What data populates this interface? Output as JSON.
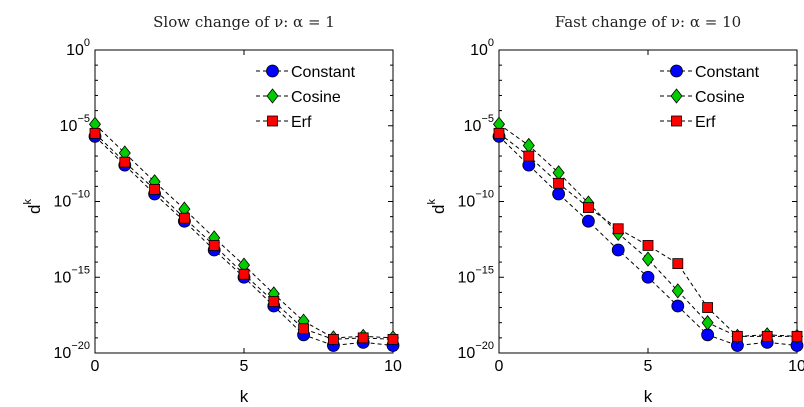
{
  "chart_data": [
    {
      "type": "line",
      "title": "Slow change of ν: α = 1",
      "xlabel": "k",
      "ylabel": "d",
      "ylabel_sup": "k",
      "yscale": "log",
      "xlim": [
        0,
        10
      ],
      "ylim_exp": [
        -20,
        0
      ],
      "xticks": [
        "0",
        "5",
        "10"
      ],
      "yticks": [
        {
          "base": "10",
          "exp": "0",
          "value": 0
        },
        {
          "base": "10",
          "exp": "−5",
          "value": -5
        },
        {
          "base": "10",
          "exp": "−10",
          "value": -10
        },
        {
          "base": "10",
          "exp": "−15",
          "value": -15
        },
        {
          "base": "10",
          "exp": "−20",
          "value": -20
        }
      ],
      "legend_position": "top-right",
      "x": [
        0,
        1,
        2,
        3,
        4,
        5,
        6,
        7,
        8,
        9,
        10
      ],
      "series": [
        {
          "name": "Constant",
          "marker": "circle",
          "color": "#0000ff",
          "log10_values": [
            -5.7,
            -7.6,
            -9.5,
            -11.3,
            -13.2,
            -15.0,
            -16.9,
            -18.8,
            -19.5,
            -19.3,
            -19.5
          ]
        },
        {
          "name": "Cosine",
          "marker": "diamond",
          "color": "#00cc00",
          "log10_values": [
            -4.9,
            -6.8,
            -8.7,
            -10.5,
            -12.4,
            -14.2,
            -16.1,
            -17.9,
            -19.0,
            -18.9,
            -19.0
          ]
        },
        {
          "name": "Erf",
          "marker": "square",
          "color": "#ff0000",
          "log10_values": [
            -5.5,
            -7.4,
            -9.2,
            -11.1,
            -12.9,
            -14.8,
            -16.6,
            -18.4,
            -19.1,
            -19.0,
            -19.1
          ]
        }
      ]
    },
    {
      "type": "line",
      "title": "Fast change of ν: α = 10",
      "xlabel": "k",
      "ylabel": "d",
      "ylabel_sup": "k",
      "yscale": "log",
      "xlim": [
        0,
        10
      ],
      "ylim_exp": [
        -20,
        0
      ],
      "xticks": [
        "0",
        "5",
        "10"
      ],
      "yticks": [
        {
          "base": "10",
          "exp": "0",
          "value": 0
        },
        {
          "base": "10",
          "exp": "−5",
          "value": -5
        },
        {
          "base": "10",
          "exp": "−10",
          "value": -10
        },
        {
          "base": "10",
          "exp": "−15",
          "value": -15
        },
        {
          "base": "10",
          "exp": "−20",
          "value": -20
        }
      ],
      "legend_position": "top-right",
      "x": [
        0,
        1,
        2,
        3,
        4,
        5,
        6,
        7,
        8,
        9,
        10
      ],
      "series": [
        {
          "name": "Constant",
          "marker": "circle",
          "color": "#0000ff",
          "log10_values": [
            -5.7,
            -7.6,
            -9.5,
            -11.3,
            -13.2,
            -15.0,
            -16.9,
            -18.8,
            -19.5,
            -19.3,
            -19.5
          ]
        },
        {
          "name": "Cosine",
          "marker": "diamond",
          "color": "#00cc00",
          "log10_values": [
            -4.9,
            -6.3,
            -8.1,
            -10.1,
            -12.1,
            -13.8,
            -15.9,
            -18.0,
            -18.9,
            -18.8,
            -18.9
          ]
        },
        {
          "name": "Erf",
          "marker": "square",
          "color": "#ff0000",
          "log10_values": [
            -5.5,
            -7.0,
            -8.8,
            -10.4,
            -11.8,
            -12.9,
            -14.1,
            -17.0,
            -18.9,
            -18.9,
            -18.9
          ]
        }
      ]
    }
  ]
}
